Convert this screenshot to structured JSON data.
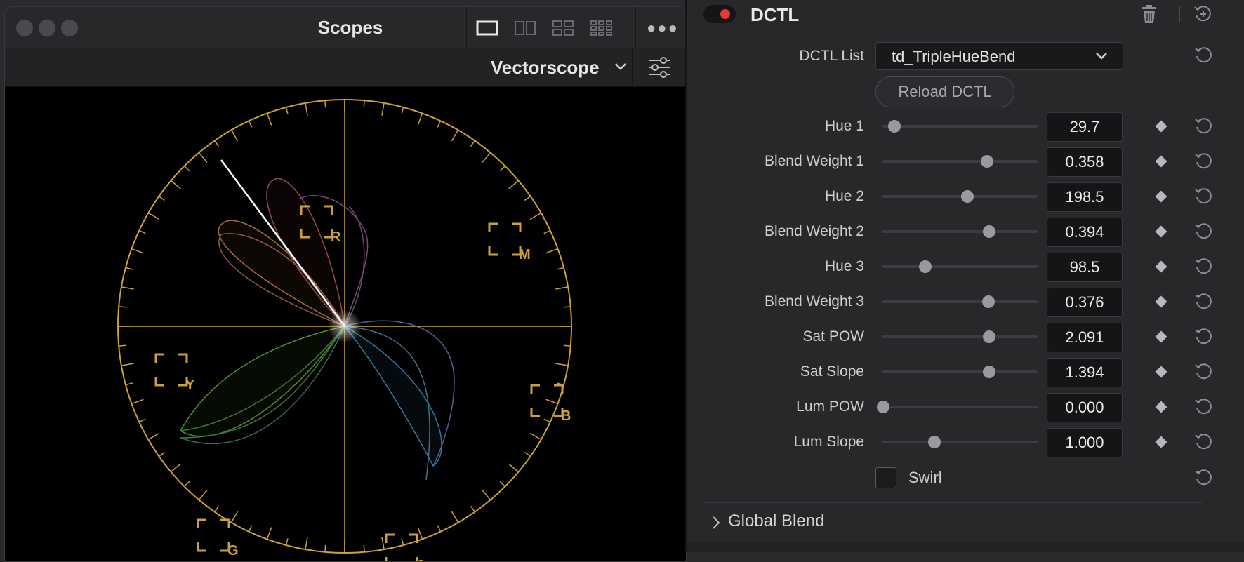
{
  "scopes_window": {
    "title": "Scopes",
    "scope_type": "Vectorscope",
    "targets": [
      "R",
      "M",
      "Y",
      "B",
      "G",
      "C"
    ],
    "graticule_color": "#c9a238"
  },
  "dctl_panel": {
    "title": "DCTL",
    "enabled_color": "#e23b3b",
    "list_label": "DCTL List",
    "list_value": "td_TripleHueBend",
    "reload_label": "Reload DCTL",
    "params": [
      {
        "label": "Hue 1",
        "value": "29.7",
        "slider": 0.08
      },
      {
        "label": "Blend Weight 1",
        "value": "0.358",
        "slider": 0.675
      },
      {
        "label": "Hue 2",
        "value": "198.5",
        "slider": 0.55
      },
      {
        "label": "Blend Weight 2",
        "value": "0.394",
        "slider": 0.69
      },
      {
        "label": "Hue 3",
        "value": "98.5",
        "slider": 0.28
      },
      {
        "label": "Blend Weight 3",
        "value": "0.376",
        "slider": 0.685
      },
      {
        "label": "Sat POW",
        "value": "2.091",
        "slider": 0.69
      },
      {
        "label": "Sat Slope",
        "value": "1.394",
        "slider": 0.69
      },
      {
        "label": "Lum POW",
        "value": "0.000",
        "slider": 0.01
      },
      {
        "label": "Lum Slope",
        "value": "1.000",
        "slider": 0.34
      }
    ],
    "swirl_label": "Swirl",
    "swirl_checked": false,
    "global_blend_label": "Global Blend"
  }
}
